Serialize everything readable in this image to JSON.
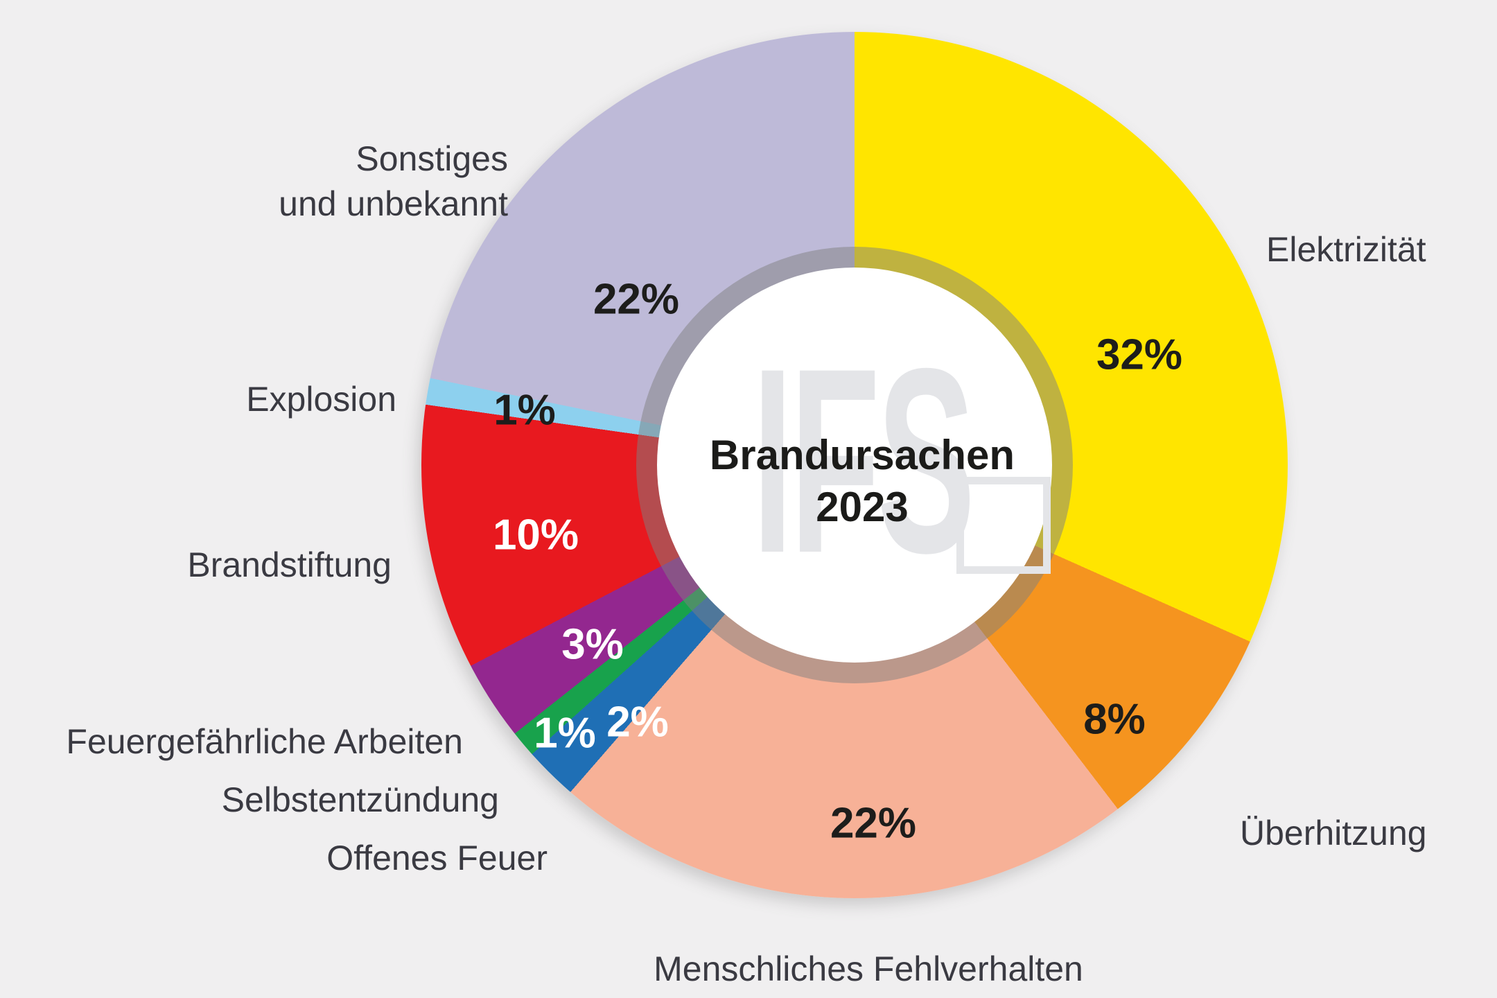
{
  "background_color": "#F0EFF0",
  "center": {
    "title_line1": "Brandursachen",
    "title_line2": "2023",
    "watermark": "IFS"
  },
  "segments": [
    {
      "label": "Elektrizität",
      "value": 32,
      "pct": "32%",
      "color": "#FFE500",
      "pct_color": "#1D1D1B"
    },
    {
      "label": "Überhitzung",
      "value": 8,
      "pct": "8%",
      "color": "#F5941F",
      "pct_color": "#1D1D1B"
    },
    {
      "label": "Menschliches Fehlverhalten",
      "value": 22,
      "pct": "22%",
      "color": "#F7B197",
      "pct_color": "#1D1D1B"
    },
    {
      "label": "Offenes Feuer",
      "value": 2,
      "pct": "2%",
      "color": "#1F6FB5",
      "pct_color": "#FFFFFF"
    },
    {
      "label": "Selbstentzündung",
      "value": 1,
      "pct": "1%",
      "color": "#18A24C",
      "pct_color": "#FFFFFF"
    },
    {
      "label": "Feuergefährliche Arbeiten",
      "value": 3,
      "pct": "3%",
      "color": "#93278F",
      "pct_color": "#FFFFFF"
    },
    {
      "label": "Brandstiftung",
      "value": 10,
      "pct": "10%",
      "color": "#E8191F",
      "pct_color": "#FFFFFF"
    },
    {
      "label": "Explosion",
      "value": 1,
      "pct": "1%",
      "color": "#8DD0EE",
      "pct_color": "#1D1D1B"
    },
    {
      "label": "Sonstiges und unbekannt",
      "label_lines": [
        "Sonstiges",
        "und unbekannt"
      ],
      "value": 22,
      "pct": "22%",
      "color": "#BEBAD8",
      "pct_color": "#1D1D1B"
    }
  ],
  "chart_data": {
    "type": "pie",
    "subtype": "donut",
    "title": "Brandursachen 2023",
    "categories": [
      "Elektrizität",
      "Überhitzung",
      "Menschliches Fehlverhalten",
      "Offenes Feuer",
      "Selbstentzündung",
      "Feuergefährliche Arbeiten",
      "Brandstiftung",
      "Explosion",
      "Sonstiges und unbekannt"
    ],
    "values": [
      32,
      8,
      22,
      2,
      1,
      3,
      10,
      1,
      22
    ],
    "unit": "percent",
    "colors": [
      "#FFE500",
      "#F5941F",
      "#F7B197",
      "#1F6FB5",
      "#18A24C",
      "#93278F",
      "#E8191F",
      "#8DD0EE",
      "#BEBAD8"
    ],
    "start_angle_deg": 0,
    "direction": "clockwise",
    "legend": "none, direct labels around chart",
    "center_label": "Brandursachen 2023",
    "inner_ring": "segment colors muted with 50% gray",
    "watermark": "IFS"
  }
}
